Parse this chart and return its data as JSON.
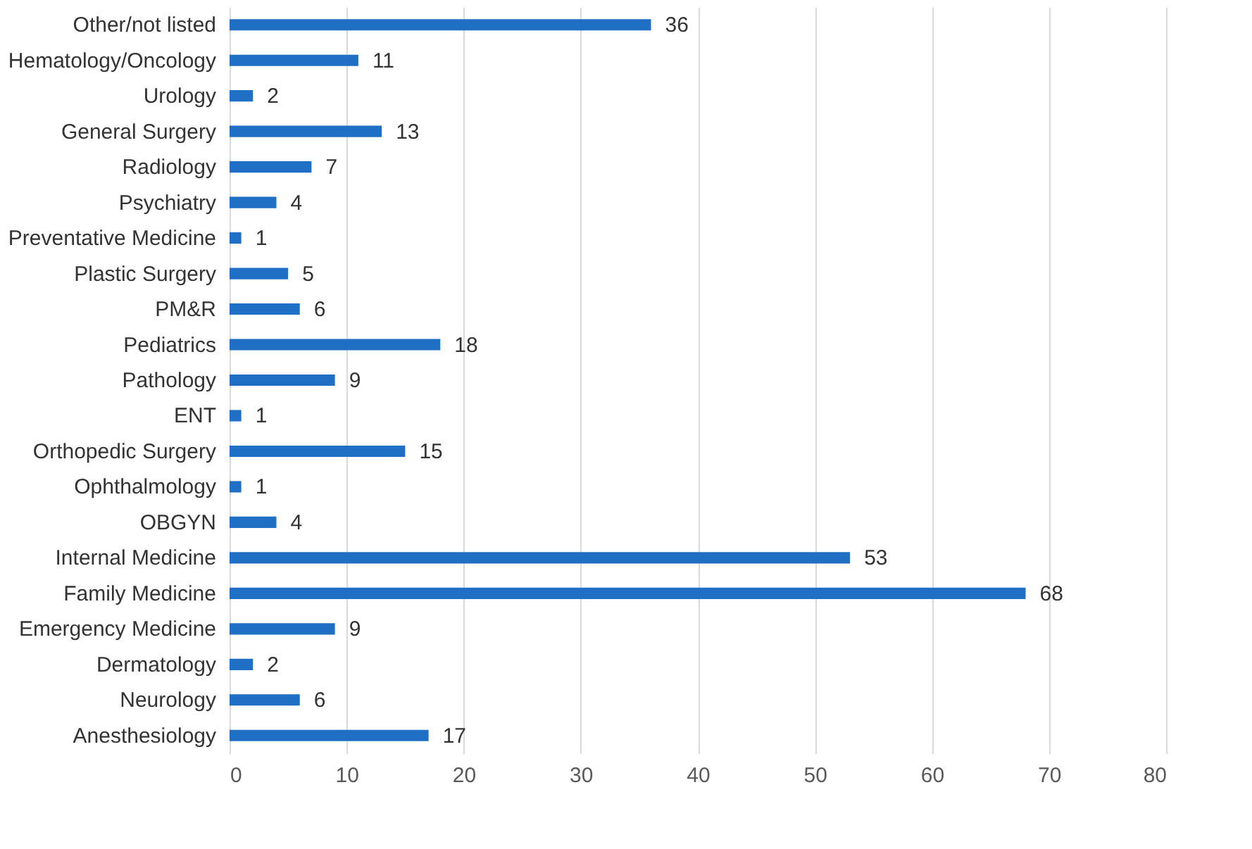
{
  "chart_data": {
    "type": "bar",
    "orientation": "horizontal",
    "categories": [
      "Other/not listed",
      "Hematology/Oncology",
      "Urology",
      "General Surgery",
      "Radiology",
      "Psychiatry",
      "Preventative Medicine",
      "Plastic Surgery",
      "PM&R",
      "Pediatrics",
      "Pathology",
      "ENT",
      "Orthopedic Surgery",
      "Ophthalmology",
      "OBGYN",
      "Internal Medicine",
      "Family Medicine",
      "Emergency Medicine",
      "Dermatology",
      "Neurology",
      "Anesthesiology"
    ],
    "values": [
      36,
      11,
      2,
      13,
      7,
      4,
      1,
      5,
      6,
      18,
      9,
      1,
      15,
      1,
      4,
      53,
      68,
      9,
      2,
      6,
      17
    ],
    "color": "#1f6fc5",
    "xlim": [
      0,
      80
    ],
    "xticks": [
      0,
      10,
      20,
      30,
      40,
      50,
      60,
      70,
      80
    ],
    "grid": "x",
    "data_labels": true
  }
}
